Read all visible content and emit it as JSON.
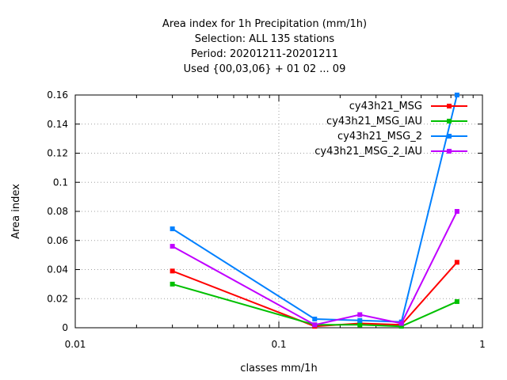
{
  "chart_data": {
    "type": "line",
    "title_lines": [
      "Area index  for 1h Precipitation (mm/1h)",
      "Selection: ALL    135 stations",
      "Period: 20201211-20201211",
      "Used {00,03,06} + 01 02 ... 09"
    ],
    "xlabel": "classes mm/1h",
    "ylabel": "Area index",
    "xscale": "log",
    "xlim": [
      0.01,
      1
    ],
    "ylim": [
      0,
      0.16
    ],
    "xticks": [
      0.01,
      0.1,
      1
    ],
    "xtick_labels": [
      "0.01",
      "0.1",
      "1"
    ],
    "yticks": [
      0,
      0.02,
      0.04,
      0.06,
      0.08,
      0.1,
      0.12,
      0.14,
      0.16
    ],
    "ytick_labels": [
      "0",
      "0.02",
      "0.04",
      "0.06",
      "0.08",
      "0.1",
      "0.12",
      "0.14",
      "0.16"
    ],
    "grid": true,
    "legend_position": "top-right",
    "x": [
      0.03,
      0.15,
      0.25,
      0.4,
      0.75
    ],
    "series": [
      {
        "name": "cy43h21_MSG",
        "color": "#ff0000",
        "values": [
          0.039,
          0.001,
          0.003,
          0.002,
          0.045
        ]
      },
      {
        "name": "cy43h21_MSG_IAU",
        "color": "#00c000",
        "values": [
          0.03,
          0.002,
          0.002,
          0.001,
          0.018
        ]
      },
      {
        "name": "cy43h21_MSG_2",
        "color": "#0080ff",
        "values": [
          0.068,
          0.006,
          0.005,
          0.004,
          0.16
        ]
      },
      {
        "name": "cy43h21_MSG_2_IAU",
        "color": "#c000ff",
        "values": [
          0.056,
          0.002,
          0.009,
          0.003,
          0.08
        ]
      }
    ]
  }
}
